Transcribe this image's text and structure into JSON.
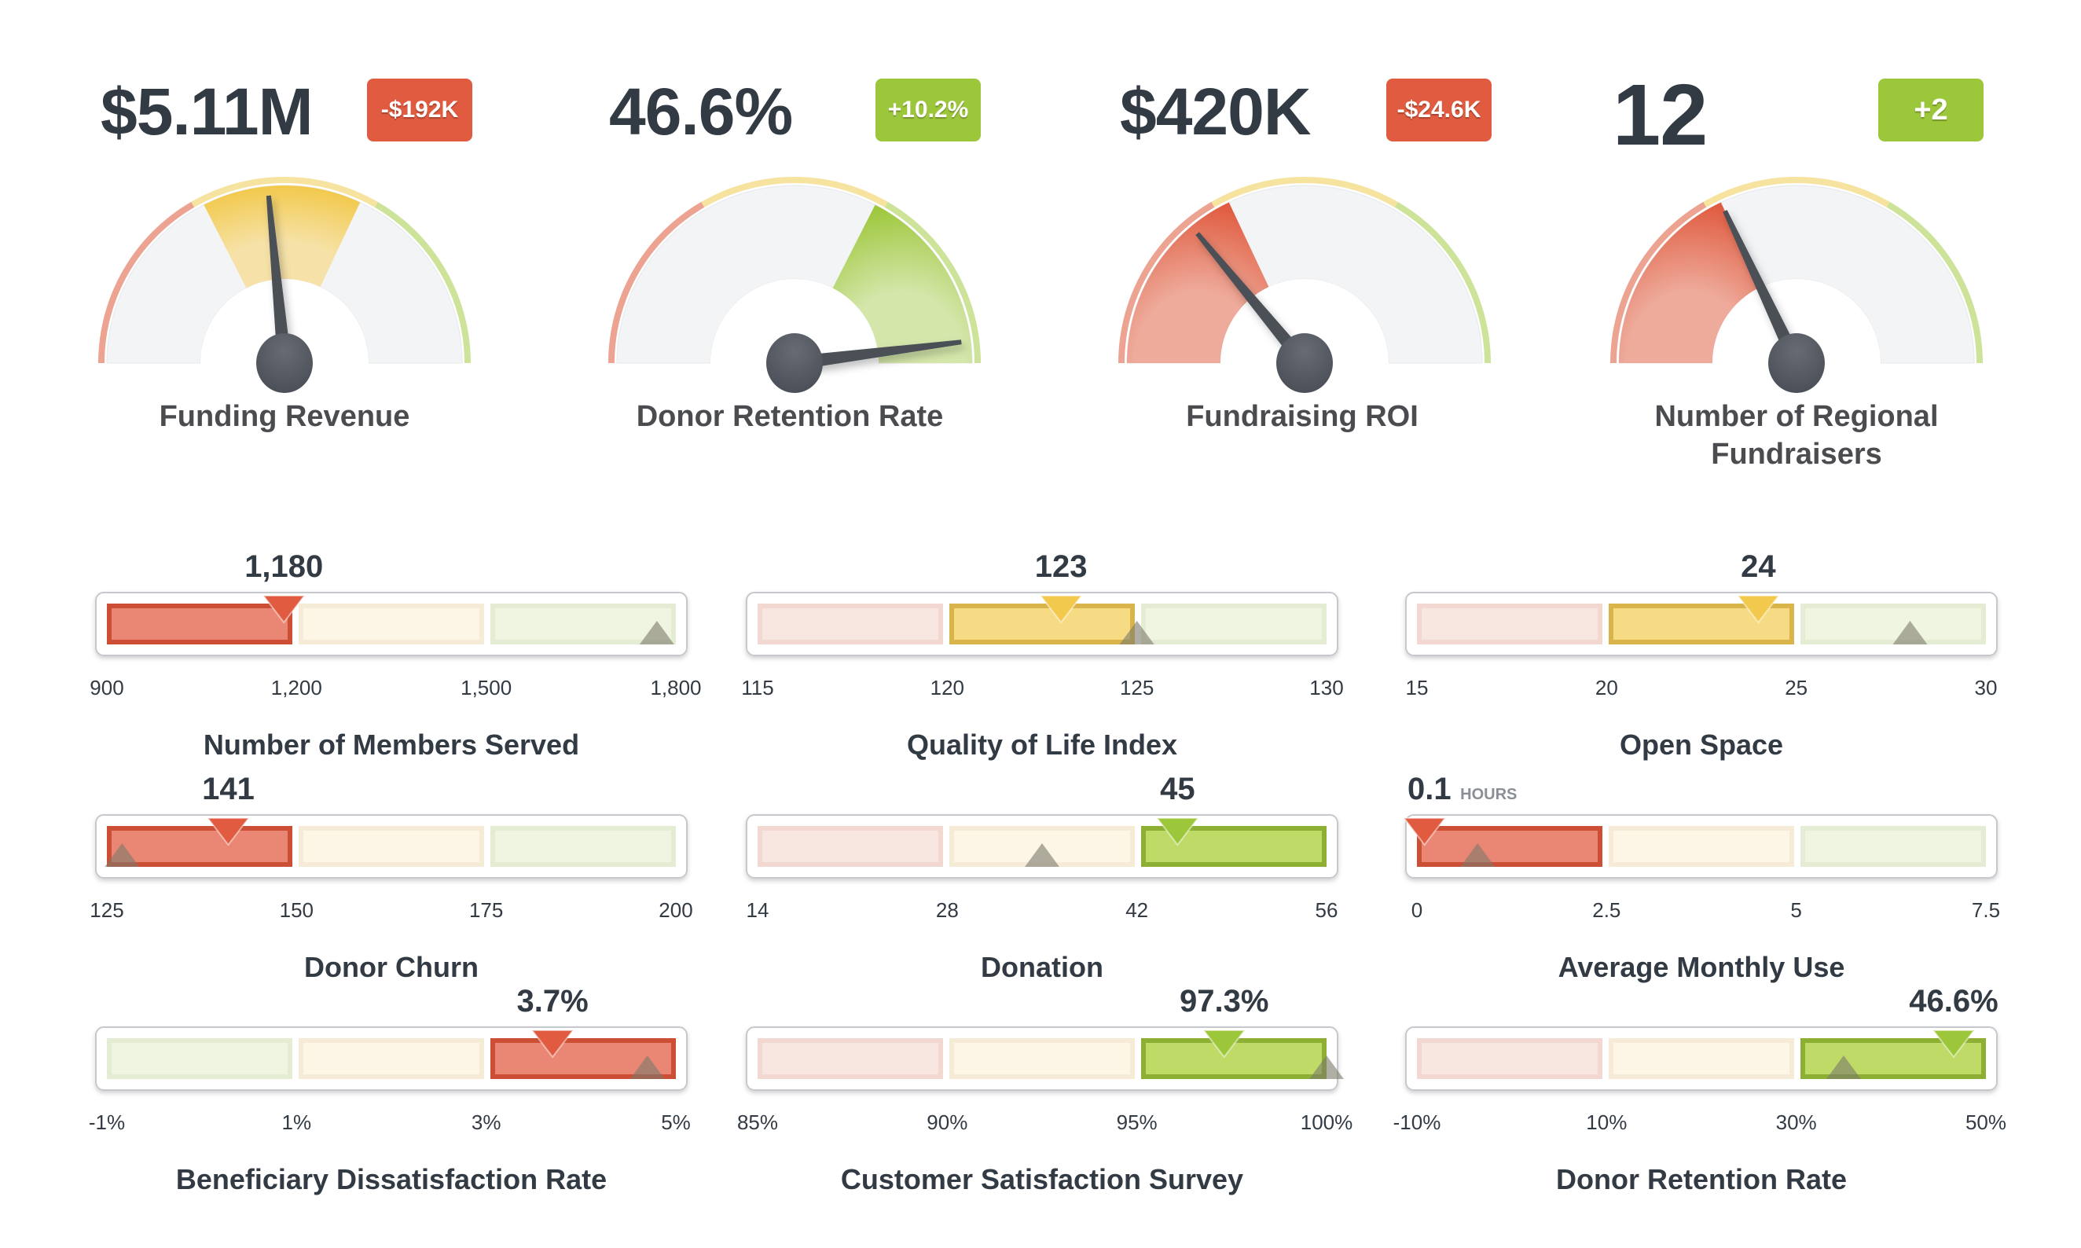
{
  "colors": {
    "red": "#e05b3f",
    "yellow": "#f2c94c",
    "green": "#9dc73b",
    "needle": "#4b4f57",
    "text": "#323a43",
    "badge_negative": "#e05b3f",
    "badge_positive": "#9dc73b"
  },
  "kpis": [
    {
      "value": "$5.11M",
      "delta": "-$192K",
      "delta_sign": "negative",
      "title": "Funding Revenue"
    },
    {
      "value": "46.6%",
      "delta": "+10.2%",
      "delta_sign": "positive",
      "title": "Donor Retention Rate"
    },
    {
      "value": "$420K",
      "delta": "-$24.6K",
      "delta_sign": "negative",
      "title": "Fundraising ROI"
    },
    {
      "value": "12",
      "delta": "+2",
      "delta_sign": "positive",
      "title": "Number of Regional Fundraisers",
      "title_lines": [
        "Number of Regional",
        "Fundraisers"
      ]
    }
  ],
  "chart_data": [
    {
      "type": "gauge",
      "title": "Funding Revenue",
      "value_label": "$5.11M",
      "range": [
        0,
        1
      ],
      "bands": [
        {
          "from": 0,
          "to": 0.333,
          "color": "red"
        },
        {
          "from": 0.333,
          "to": 0.667,
          "color": "yellow"
        },
        {
          "from": 0.667,
          "to": 1,
          "color": "green"
        }
      ],
      "active_band": "yellow",
      "active_band_range": [
        0.35,
        0.64
      ],
      "needle_fraction": 0.47
    },
    {
      "type": "gauge",
      "title": "Donor Retention Rate",
      "value_label": "46.6%",
      "range": [
        0,
        1
      ],
      "bands": [
        {
          "from": 0,
          "to": 0.333,
          "color": "red"
        },
        {
          "from": 0.333,
          "to": 0.667,
          "color": "yellow"
        },
        {
          "from": 0.667,
          "to": 1,
          "color": "green"
        }
      ],
      "active_band": "green",
      "active_band_range": [
        0.65,
        1.0
      ],
      "needle_fraction": 0.96
    },
    {
      "type": "gauge",
      "title": "Fundraising ROI",
      "value_label": "$420K",
      "range": [
        0,
        1
      ],
      "bands": [
        {
          "from": 0,
          "to": 0.333,
          "color": "red"
        },
        {
          "from": 0.333,
          "to": 0.667,
          "color": "yellow"
        },
        {
          "from": 0.667,
          "to": 1,
          "color": "green"
        }
      ],
      "active_band": "red",
      "active_band_range": [
        0,
        0.36
      ],
      "needle_fraction": 0.28
    },
    {
      "type": "gauge",
      "title": "Number of Regional Fundraisers",
      "value_label": "12",
      "range": [
        0,
        1
      ],
      "bands": [
        {
          "from": 0,
          "to": 0.333,
          "color": "red"
        },
        {
          "from": 0.333,
          "to": 0.667,
          "color": "yellow"
        },
        {
          "from": 0.667,
          "to": 1,
          "color": "green"
        }
      ],
      "active_band": "red",
      "active_band_range": [
        0,
        0.36
      ],
      "needle_fraction": 0.36
    },
    {
      "type": "bullet",
      "title": "Number of Members Served",
      "value_label": "1,180",
      "unit": "",
      "value": 1180,
      "target": 1770,
      "range": [
        900,
        1800
      ],
      "ticks": [
        "900",
        "1,200",
        "1,500",
        "1,800"
      ],
      "bands": [
        "red",
        "yellow",
        "green"
      ],
      "active_band": 0
    },
    {
      "type": "bullet",
      "title": "Quality of Life Index",
      "value_label": "123",
      "unit": "",
      "value": 123,
      "target": 125,
      "range": [
        115,
        130
      ],
      "ticks": [
        "115",
        "120",
        "125",
        "130"
      ],
      "bands": [
        "red",
        "yellow",
        "green"
      ],
      "active_band": 1
    },
    {
      "type": "bullet",
      "title": "Open Space",
      "value_label": "24",
      "unit": "",
      "value": 24,
      "target": 28,
      "range": [
        15,
        30
      ],
      "ticks": [
        "15",
        "20",
        "25",
        "30"
      ],
      "bands": [
        "red",
        "yellow",
        "green"
      ],
      "active_band": 1
    },
    {
      "type": "bullet",
      "title": "Donor Churn",
      "value_label": "141",
      "unit": "",
      "value": 141,
      "target": 127,
      "range": [
        125,
        200
      ],
      "ticks": [
        "125",
        "150",
        "175",
        "200"
      ],
      "bands": [
        "red",
        "yellow",
        "green"
      ],
      "active_band": 0
    },
    {
      "type": "bullet",
      "title": "Donation",
      "value_label": "45",
      "unit": "",
      "value": 45,
      "target": 35,
      "range": [
        14,
        56
      ],
      "ticks": [
        "14",
        "28",
        "42",
        "56"
      ],
      "bands": [
        "red",
        "yellow",
        "green"
      ],
      "active_band": 2
    },
    {
      "type": "bullet",
      "title": "Average Monthly Use",
      "value_label": "0.1",
      "unit": "HOURS",
      "value": 0.1,
      "target": 0.8,
      "range": [
        0,
        7.5
      ],
      "ticks": [
        "0",
        "2.5",
        "5",
        "7.5"
      ],
      "bands": [
        "red",
        "yellow",
        "green"
      ],
      "active_band": 0
    },
    {
      "type": "bullet",
      "title": "Beneficiary Dissatisfaction Rate",
      "value_label": "3.7%",
      "unit": "",
      "value": 3.7,
      "target": 4.7,
      "range": [
        -1,
        5
      ],
      "ticks": [
        "-1%",
        "1%",
        "3%",
        "5%"
      ],
      "bands": [
        "green",
        "yellow",
        "red"
      ],
      "active_band": 2
    },
    {
      "type": "bullet",
      "title": "Customer Satisfaction Survey",
      "value_label": "97.3%",
      "unit": "",
      "value": 97.3,
      "target": 100,
      "range": [
        85,
        100
      ],
      "ticks": [
        "85%",
        "90%",
        "95%",
        "100%"
      ],
      "bands": [
        "red",
        "yellow",
        "green"
      ],
      "active_band": 2
    },
    {
      "type": "bullet",
      "title": "Donor Retention Rate",
      "value_label": "46.6%",
      "unit": "",
      "value": 46.6,
      "target": 35,
      "range": [
        -10,
        50
      ],
      "ticks": [
        "-10%",
        "10%",
        "30%",
        "50%"
      ],
      "bands": [
        "red",
        "yellow",
        "green"
      ],
      "active_band": 2
    }
  ]
}
